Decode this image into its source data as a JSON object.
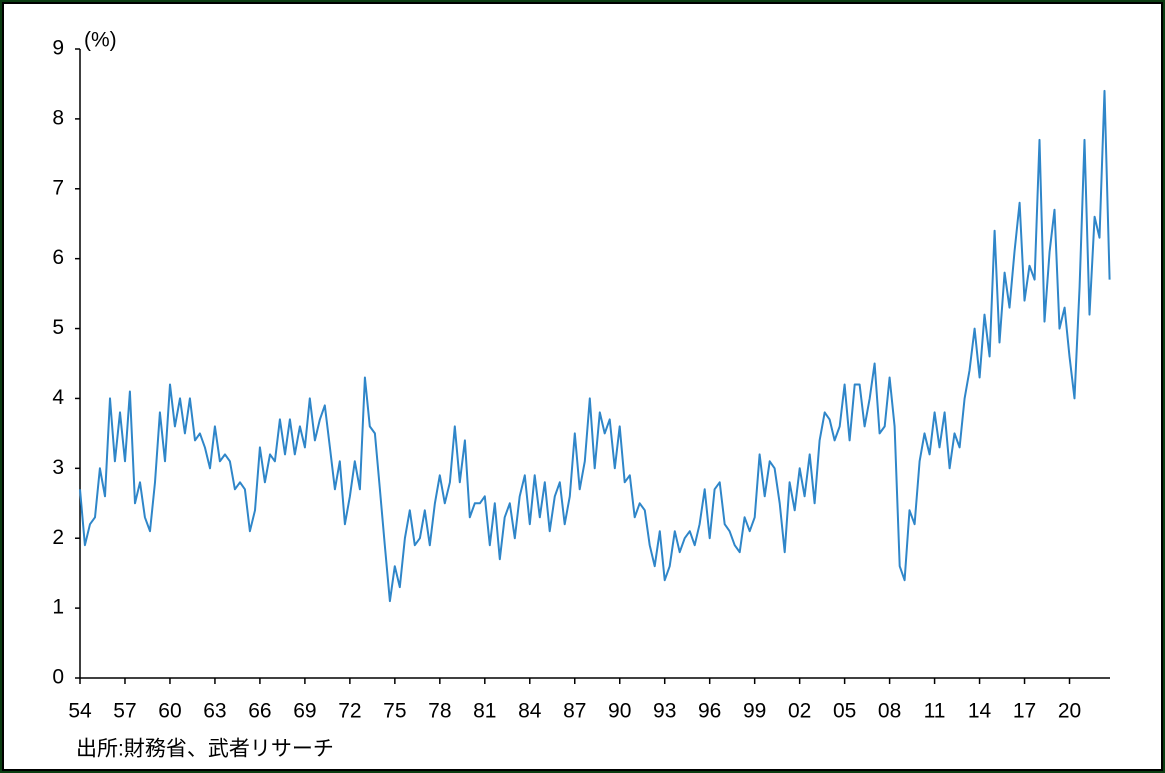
{
  "chart_data": {
    "type": "line",
    "y_label": "(%)",
    "note": "出所:財務省、武者リサーチ",
    "color": "#2f86c9",
    "xlim": [
      1954,
      2022.7
    ],
    "ylim": [
      0,
      9
    ],
    "yticks": [
      0,
      1,
      2,
      3,
      4,
      5,
      6,
      7,
      8,
      9
    ],
    "xticks": [
      {
        "value": 1954,
        "label": "54"
      },
      {
        "value": 1957,
        "label": "57"
      },
      {
        "value": 1960,
        "label": "60"
      },
      {
        "value": 1963,
        "label": "63"
      },
      {
        "value": 1966,
        "label": "66"
      },
      {
        "value": 1969,
        "label": "69"
      },
      {
        "value": 1972,
        "label": "72"
      },
      {
        "value": 1975,
        "label": "75"
      },
      {
        "value": 1978,
        "label": "78"
      },
      {
        "value": 1981,
        "label": "81"
      },
      {
        "value": 1984,
        "label": "84"
      },
      {
        "value": 1987,
        "label": "87"
      },
      {
        "value": 1990,
        "label": "90"
      },
      {
        "value": 1993,
        "label": "93"
      },
      {
        "value": 1996,
        "label": "96"
      },
      {
        "value": 1999,
        "label": "99"
      },
      {
        "value": 2002,
        "label": "02"
      },
      {
        "value": 2005,
        "label": "05"
      },
      {
        "value": 2008,
        "label": "08"
      },
      {
        "value": 2011,
        "label": "11"
      },
      {
        "value": 2014,
        "label": "14"
      },
      {
        "value": 2017,
        "label": "17"
      },
      {
        "value": 2020,
        "label": "20"
      }
    ],
    "x": [
      1954,
      1954.33,
      1954.67,
      1955,
      1955.33,
      1955.67,
      1956,
      1956.33,
      1956.67,
      1957,
      1957.33,
      1957.67,
      1958,
      1958.33,
      1958.67,
      1959,
      1959.33,
      1959.67,
      1960,
      1960.33,
      1960.67,
      1961,
      1961.33,
      1961.67,
      1962,
      1962.33,
      1962.67,
      1963,
      1963.33,
      1963.67,
      1964,
      1964.33,
      1964.67,
      1965,
      1965.33,
      1965.67,
      1966,
      1966.33,
      1966.67,
      1967,
      1967.33,
      1967.67,
      1968,
      1968.33,
      1968.67,
      1969,
      1969.33,
      1969.67,
      1970,
      1970.33,
      1970.67,
      1971,
      1971.33,
      1971.67,
      1972,
      1972.33,
      1972.67,
      1973,
      1973.33,
      1973.67,
      1974,
      1974.33,
      1974.67,
      1975,
      1975.33,
      1975.67,
      1976,
      1976.33,
      1976.67,
      1977,
      1977.33,
      1977.67,
      1978,
      1978.33,
      1978.67,
      1979,
      1979.33,
      1979.67,
      1980,
      1980.33,
      1980.67,
      1981,
      1981.33,
      1981.67,
      1982,
      1982.33,
      1982.67,
      1983,
      1983.33,
      1983.67,
      1984,
      1984.33,
      1984.67,
      1985,
      1985.33,
      1985.67,
      1986,
      1986.33,
      1986.67,
      1987,
      1987.33,
      1987.67,
      1988,
      1988.33,
      1988.67,
      1989,
      1989.33,
      1989.67,
      1990,
      1990.33,
      1990.67,
      1991,
      1991.33,
      1991.67,
      1992,
      1992.33,
      1992.67,
      1993,
      1993.33,
      1993.67,
      1994,
      1994.33,
      1994.67,
      1995,
      1995.33,
      1995.67,
      1996,
      1996.33,
      1996.67,
      1997,
      1997.33,
      1997.67,
      1998,
      1998.33,
      1998.67,
      1999,
      1999.33,
      1999.67,
      2000,
      2000.33,
      2000.67,
      2001,
      2001.33,
      2001.67,
      2002,
      2002.33,
      2002.67,
      2003,
      2003.33,
      2003.67,
      2004,
      2004.33,
      2004.67,
      2005,
      2005.33,
      2005.67,
      2006,
      2006.33,
      2006.67,
      2007,
      2007.33,
      2007.67,
      2008,
      2008.33,
      2008.67,
      2009,
      2009.33,
      2009.67,
      2010,
      2010.33,
      2010.67,
      2011,
      2011.33,
      2011.67,
      2012,
      2012.33,
      2012.67,
      2013,
      2013.33,
      2013.67,
      2014,
      2014.33,
      2014.67,
      2015,
      2015.33,
      2015.67,
      2016,
      2016.33,
      2016.67,
      2017,
      2017.33,
      2017.67,
      2018,
      2018.33,
      2018.67,
      2019,
      2019.33,
      2019.67,
      2020,
      2020.33,
      2020.67,
      2021,
      2021.33,
      2021.67,
      2022,
      2022.33,
      2022.67
    ],
    "values": [
      2.7,
      1.9,
      2.2,
      2.3,
      3.0,
      2.6,
      4.0,
      3.1,
      3.8,
      3.1,
      4.1,
      2.5,
      2.8,
      2.3,
      2.1,
      2.8,
      3.8,
      3.1,
      4.2,
      3.6,
      4.0,
      3.5,
      4.0,
      3.4,
      3.5,
      3.3,
      3.0,
      3.6,
      3.1,
      3.2,
      3.1,
      2.7,
      2.8,
      2.7,
      2.1,
      2.4,
      3.3,
      2.8,
      3.2,
      3.1,
      3.7,
      3.2,
      3.7,
      3.2,
      3.6,
      3.3,
      4.0,
      3.4,
      3.7,
      3.9,
      3.3,
      2.7,
      3.1,
      2.2,
      2.6,
      3.1,
      2.7,
      4.3,
      3.6,
      3.5,
      2.7,
      1.9,
      1.1,
      1.6,
      1.3,
      2.0,
      2.4,
      1.9,
      2.0,
      2.4,
      1.9,
      2.5,
      2.9,
      2.5,
      2.8,
      3.6,
      2.8,
      3.4,
      2.3,
      2.5,
      2.5,
      2.6,
      1.9,
      2.5,
      1.7,
      2.3,
      2.5,
      2.0,
      2.6,
      2.9,
      2.2,
      2.9,
      2.3,
      2.8,
      2.1,
      2.6,
      2.8,
      2.2,
      2.6,
      3.5,
      2.7,
      3.1,
      4.0,
      3.0,
      3.8,
      3.5,
      3.7,
      3.0,
      3.6,
      2.8,
      2.9,
      2.3,
      2.5,
      2.4,
      1.9,
      1.6,
      2.1,
      1.4,
      1.6,
      2.1,
      1.8,
      2.0,
      2.1,
      1.9,
      2.2,
      2.7,
      2.0,
      2.7,
      2.8,
      2.2,
      2.1,
      1.9,
      1.8,
      2.3,
      2.1,
      2.3,
      3.2,
      2.6,
      3.1,
      3.0,
      2.5,
      1.8,
      2.8,
      2.4,
      3.0,
      2.6,
      3.2,
      2.5,
      3.4,
      3.8,
      3.7,
      3.4,
      3.6,
      4.2,
      3.4,
      4.2,
      4.2,
      3.6,
      4.0,
      4.5,
      3.5,
      3.6,
      4.3,
      3.6,
      1.6,
      1.4,
      2.4,
      2.2,
      3.1,
      3.5,
      3.2,
      3.8,
      3.3,
      3.8,
      3.0,
      3.5,
      3.3,
      4.0,
      4.4,
      5.0,
      4.3,
      5.2,
      4.6,
      6.4,
      4.8,
      5.8,
      5.3,
      6.1,
      6.8,
      5.4,
      5.9,
      5.7,
      7.7,
      5.1,
      6.1,
      6.7,
      5.0,
      5.3,
      4.6,
      4.0,
      5.6,
      7.7,
      5.2,
      6.6,
      6.3,
      8.4,
      5.7
    ]
  }
}
